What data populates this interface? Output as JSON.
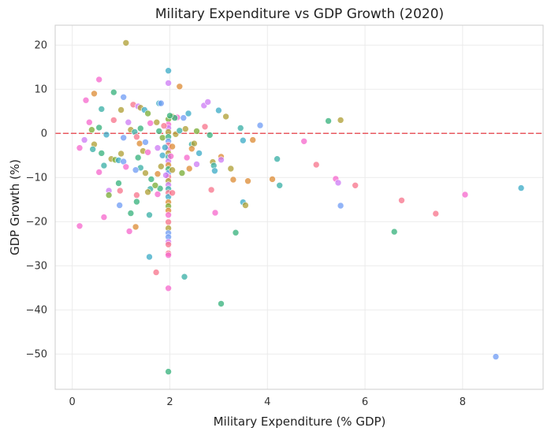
{
  "chart_data": {
    "type": "scatter",
    "title": "Military Expenditure vs GDP Growth (2020)",
    "xlabel": "Military Expenditure (% GDP)",
    "ylabel": "GDP Growth (%)",
    "xlim": [
      -0.35,
      9.65
    ],
    "ylim": [
      -58,
      24.5
    ],
    "xticks": [
      0,
      2,
      4,
      6,
      8
    ],
    "yticks": [
      20,
      10,
      0,
      -10,
      -20,
      -30,
      -40,
      -50
    ],
    "grid": true,
    "reference_line": {
      "y": 0,
      "color": "#e8585f",
      "style": "dashed"
    },
    "palette": [
      "#f77189",
      "#dc8932",
      "#ae9d31",
      "#77ab31",
      "#33b07a",
      "#36ada4",
      "#38a9c5",
      "#6e9bf4",
      "#cc7af4",
      "#f565cc"
    ],
    "points": [
      [
        1.1,
        20.5,
        2
      ],
      [
        0.55,
        12.2,
        9
      ],
      [
        0.85,
        9.3,
        4
      ],
      [
        0.45,
        9.0,
        1
      ],
      [
        0.28,
        7.5,
        9
      ],
      [
        1.05,
        8.2,
        7
      ],
      [
        0.6,
        5.5,
        5
      ],
      [
        1.0,
        5.3,
        2
      ],
      [
        0.35,
        2.5,
        9
      ],
      [
        0.55,
        1.3,
        4
      ],
      [
        0.85,
        3.0,
        0
      ],
      [
        0.4,
        0.8,
        3
      ],
      [
        1.15,
        2.5,
        8
      ],
      [
        0.7,
        -0.3,
        6
      ],
      [
        0.25,
        -1.5,
        8
      ],
      [
        0.45,
        -2.5,
        2
      ],
      [
        0.15,
        -3.3,
        9
      ],
      [
        0.42,
        -3.6,
        5
      ],
      [
        0.6,
        -4.5,
        4
      ],
      [
        0.8,
        -5.8,
        2
      ],
      [
        0.88,
        -6.0,
        3
      ],
      [
        0.95,
        -6.1,
        6
      ],
      [
        1.05,
        -6.4,
        7
      ],
      [
        0.65,
        -7.3,
        5
      ],
      [
        0.55,
        -8.8,
        9
      ],
      [
        0.75,
        -13.0,
        8
      ],
      [
        0.75,
        -14.0,
        3
      ],
      [
        0.65,
        -19.0,
        9
      ],
      [
        0.15,
        -21.0,
        9
      ],
      [
        0.97,
        -16.3,
        7
      ],
      [
        1.2,
        -18.1,
        4
      ],
      [
        1.17,
        -22.2,
        9
      ],
      [
        1.3,
        -21.2,
        1
      ],
      [
        0.98,
        -13.0,
        0
      ],
      [
        0.95,
        -11.3,
        4
      ],
      [
        1.1,
        -7.6,
        9
      ],
      [
        1.0,
        -4.6,
        2
      ],
      [
        1.05,
        -1.0,
        7
      ],
      [
        1.2,
        0.8,
        2
      ],
      [
        1.25,
        6.5,
        0
      ],
      [
        1.35,
        6.1,
        8
      ],
      [
        1.4,
        5.8,
        2
      ],
      [
        1.48,
        5.3,
        6
      ],
      [
        1.55,
        4.5,
        3
      ],
      [
        1.6,
        2.3,
        9
      ],
      [
        1.4,
        1.1,
        4
      ],
      [
        1.28,
        0.3,
        5
      ],
      [
        1.32,
        -0.8,
        0
      ],
      [
        1.38,
        -2.3,
        1
      ],
      [
        1.5,
        -2.0,
        7
      ],
      [
        1.45,
        -4.0,
        2
      ],
      [
        1.55,
        -4.3,
        9
      ],
      [
        1.35,
        -5.5,
        4
      ],
      [
        1.4,
        -7.8,
        5
      ],
      [
        1.3,
        -8.3,
        7
      ],
      [
        1.5,
        -9.0,
        2
      ],
      [
        1.62,
        -10.4,
        4
      ],
      [
        1.6,
        -12.6,
        5
      ],
      [
        1.55,
        -13.3,
        2
      ],
      [
        1.32,
        -14.0,
        0
      ],
      [
        1.32,
        -15.5,
        4
      ],
      [
        1.58,
        -18.5,
        5
      ],
      [
        1.58,
        -28.0,
        6
      ],
      [
        1.72,
        -31.5,
        0
      ],
      [
        1.75,
        -13.8,
        9
      ],
      [
        1.8,
        -12.5,
        4
      ],
      [
        1.7,
        -11.8,
        3
      ],
      [
        1.75,
        -9.2,
        1
      ],
      [
        1.82,
        -7.5,
        2
      ],
      [
        1.85,
        -5.0,
        6
      ],
      [
        1.75,
        -3.3,
        8
      ],
      [
        1.85,
        -1.0,
        3
      ],
      [
        1.78,
        0.5,
        4
      ],
      [
        1.73,
        2.5,
        2
      ],
      [
        1.78,
        6.8,
        6
      ],
      [
        1.82,
        6.8,
        7
      ],
      [
        1.97,
        14.2,
        6
      ],
      [
        1.97,
        11.4,
        8
      ],
      [
        2.2,
        10.6,
        1
      ],
      [
        2.05,
        3.8,
        2
      ],
      [
        2.15,
        3.6,
        9
      ],
      [
        2.1,
        3.5,
        4
      ],
      [
        2.28,
        3.5,
        7
      ],
      [
        2.38,
        4.5,
        6
      ],
      [
        2.55,
        0.5,
        3
      ],
      [
        2.45,
        -2.5,
        5
      ],
      [
        2.5,
        -2.3,
        2
      ],
      [
        2.35,
        -5.5,
        9
      ],
      [
        2.4,
        -8.0,
        1
      ],
      [
        2.55,
        -7.0,
        8
      ],
      [
        2.25,
        -9.0,
        3
      ],
      [
        2.3,
        -32.5,
        5
      ],
      [
        2.45,
        -3.5,
        1
      ],
      [
        2.6,
        -4.5,
        6
      ],
      [
        2.7,
        6.3,
        8
      ],
      [
        2.78,
        7.1,
        8
      ],
      [
        2.72,
        1.5,
        0
      ],
      [
        2.82,
        -0.4,
        4
      ],
      [
        2.88,
        -6.5,
        2
      ],
      [
        2.9,
        -7.3,
        5
      ],
      [
        2.92,
        -8.5,
        6
      ],
      [
        2.85,
        -12.8,
        0
      ],
      [
        2.93,
        -18.0,
        9
      ],
      [
        3.0,
        5.2,
        6
      ],
      [
        3.05,
        -5.3,
        1
      ],
      [
        3.05,
        -6.0,
        8
      ],
      [
        3.15,
        3.8,
        2
      ],
      [
        3.25,
        -8.0,
        2
      ],
      [
        3.3,
        -10.5,
        1
      ],
      [
        3.35,
        -22.5,
        4
      ],
      [
        3.05,
        -38.6,
        4
      ],
      [
        3.45,
        1.2,
        5
      ],
      [
        3.5,
        -1.6,
        6
      ],
      [
        3.5,
        -15.6,
        6
      ],
      [
        3.55,
        -16.3,
        2
      ],
      [
        3.6,
        -10.8,
        1
      ],
      [
        3.7,
        -1.5,
        1
      ],
      [
        3.85,
        1.8,
        7
      ],
      [
        4.1,
        -10.4,
        1
      ],
      [
        4.2,
        -5.8,
        5
      ],
      [
        4.25,
        -11.8,
        5
      ],
      [
        4.75,
        -1.8,
        9
      ],
      [
        5.0,
        -7.1,
        0
      ],
      [
        5.25,
        2.8,
        4
      ],
      [
        5.5,
        3.0,
        2
      ],
      [
        5.4,
        -10.3,
        9
      ],
      [
        5.45,
        -11.2,
        8
      ],
      [
        5.5,
        -16.4,
        7
      ],
      [
        5.8,
        -11.8,
        0
      ],
      [
        6.6,
        -22.3,
        4
      ],
      [
        6.75,
        -15.2,
        0
      ],
      [
        7.45,
        -18.2,
        0
      ],
      [
        8.05,
        -13.9,
        9
      ],
      [
        8.68,
        -50.6,
        7
      ],
      [
        9.2,
        -12.4,
        6
      ],
      [
        1.97,
        3.2,
        3
      ],
      [
        1.97,
        2.0,
        9
      ],
      [
        1.97,
        1.2,
        8
      ],
      [
        1.97,
        0.3,
        2
      ],
      [
        1.97,
        -0.8,
        4
      ],
      [
        1.97,
        -1.8,
        7
      ],
      [
        1.97,
        -2.7,
        0
      ],
      [
        1.97,
        -3.6,
        9
      ],
      [
        1.97,
        -4.5,
        2
      ],
      [
        1.97,
        -5.4,
        5
      ],
      [
        1.97,
        -6.3,
        8
      ],
      [
        1.97,
        -7.2,
        1
      ],
      [
        1.97,
        -8.1,
        4
      ],
      [
        1.97,
        -9.0,
        7
      ],
      [
        1.97,
        -9.9,
        0
      ],
      [
        1.97,
        -10.8,
        2
      ],
      [
        1.97,
        -11.7,
        8
      ],
      [
        1.97,
        -12.6,
        5
      ],
      [
        1.97,
        -13.5,
        0
      ],
      [
        1.97,
        -14.4,
        6
      ],
      [
        1.97,
        -15.6,
        1
      ],
      [
        1.97,
        -16.5,
        3
      ],
      [
        1.97,
        -17.5,
        1
      ],
      [
        1.97,
        -18.5,
        9
      ],
      [
        1.97,
        -20.1,
        0
      ],
      [
        1.97,
        -21.5,
        2
      ],
      [
        1.97,
        -22.6,
        7
      ],
      [
        1.97,
        -23.5,
        7
      ],
      [
        1.97,
        -24.6,
        8
      ],
      [
        1.97,
        -25.2,
        0
      ],
      [
        1.97,
        -27.2,
        0
      ],
      [
        1.97,
        -27.6,
        9
      ],
      [
        1.97,
        -35.1,
        9
      ],
      [
        1.97,
        -54.0,
        4
      ],
      [
        2.05,
        -13.5,
        0
      ],
      [
        2.05,
        -8.3,
        2
      ],
      [
        2.02,
        -5.2,
        9
      ],
      [
        2.05,
        -3.0,
        1
      ],
      [
        2.0,
        4.0,
        4
      ],
      [
        1.88,
        1.7,
        0
      ],
      [
        1.9,
        -3.2,
        6
      ],
      [
        1.92,
        -9.5,
        8
      ],
      [
        2.12,
        -0.2,
        2
      ],
      [
        2.2,
        0.6,
        5
      ],
      [
        2.32,
        1.0,
        2
      ]
    ]
  }
}
